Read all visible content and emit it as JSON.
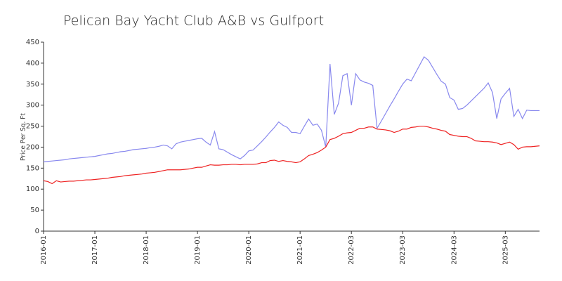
{
  "chart_data": {
    "type": "line",
    "title": "Pelican Bay Yacht Club A&B vs Gulfport",
    "y_label": "Price Per Sq. Ft",
    "categories": [
      "2016-01",
      null,
      null,
      null,
      null,
      null,
      null,
      null,
      null,
      null,
      null,
      null,
      "2017-01",
      null,
      null,
      null,
      null,
      null,
      null,
      null,
      null,
      null,
      null,
      null,
      "2018-01",
      null,
      null,
      null,
      null,
      null,
      null,
      null,
      null,
      null,
      null,
      null,
      "2019-01",
      null,
      null,
      null,
      null,
      null,
      null,
      null,
      null,
      null,
      null,
      null,
      "2020-01",
      null,
      null,
      null,
      null,
      null,
      null,
      null,
      null,
      null,
      null,
      null,
      "2021-01",
      null,
      null,
      null,
      null,
      null,
      null,
      null,
      null,
      null,
      null,
      null,
      "2022-03",
      null,
      null,
      null,
      null,
      null,
      null,
      null,
      null,
      null,
      null,
      null,
      "2023-03",
      null,
      null,
      null,
      null,
      null,
      null,
      null,
      null,
      null,
      null,
      null,
      "2024-03",
      null,
      null,
      null,
      null,
      null,
      null,
      null,
      null,
      null,
      null,
      null,
      "2025-03",
      null,
      null,
      null,
      null,
      null,
      null,
      null,
      null
    ],
    "series": [
      {
        "color": "#8888ee",
        "values": [
          165,
          166,
          167,
          168,
          169,
          170,
          172,
          173,
          174,
          175,
          176,
          177,
          178,
          180,
          182,
          184,
          185,
          187,
          189,
          190,
          192,
          194,
          195,
          196,
          197,
          199,
          200,
          202,
          205,
          203,
          196,
          208,
          212,
          214,
          216,
          218,
          220,
          221,
          212,
          205,
          237,
          196,
          194,
          188,
          182,
          177,
          172,
          180,
          191,
          193,
          203,
          213,
          224,
          236,
          247,
          260,
          252,
          247,
          235,
          235,
          232,
          250,
          267,
          252,
          255,
          240,
          200,
          398,
          278,
          305,
          370,
          375,
          300,
          375,
          360,
          355,
          352,
          347,
          245,
          262,
          280,
          298,
          315,
          333,
          350,
          362,
          358,
          377,
          396,
          415,
          407,
          390,
          373,
          357,
          350,
          318,
          312,
          290,
          292,
          300,
          310,
          320,
          330,
          340,
          353,
          330,
          268,
          315,
          328,
          340,
          273,
          290,
          268,
          288,
          287,
          287,
          287
        ]
      },
      {
        "color": "#ee2222",
        "values": [
          120,
          118,
          113,
          120,
          117,
          118,
          119,
          119,
          120,
          121,
          122,
          122,
          123,
          124,
          125,
          126,
          128,
          129,
          130,
          132,
          133,
          134,
          135,
          136,
          138,
          139,
          140,
          142,
          144,
          146,
          146,
          146,
          146,
          147,
          148,
          150,
          152,
          152,
          155,
          158,
          157,
          157,
          158,
          158,
          159,
          159,
          158,
          159,
          159,
          159,
          160,
          163,
          163,
          168,
          169,
          166,
          168,
          166,
          165,
          163,
          165,
          172,
          180,
          183,
          187,
          193,
          200,
          218,
          221,
          226,
          232,
          234,
          235,
          240,
          245,
          245,
          248,
          248,
          243,
          242,
          241,
          239,
          235,
          238,
          243,
          243,
          247,
          248,
          250,
          250,
          248,
          245,
          243,
          240,
          238,
          230,
          228,
          226,
          225,
          225,
          221,
          215,
          214,
          213,
          213,
          212,
          210,
          206,
          209,
          212,
          206,
          195,
          200,
          201,
          201,
          202,
          203
        ]
      }
    ],
    "ylim": [
      0,
      450
    ],
    "yticks": [
      0,
      50,
      100,
      150,
      200,
      250,
      300,
      350,
      400,
      450
    ],
    "grid": false
  }
}
